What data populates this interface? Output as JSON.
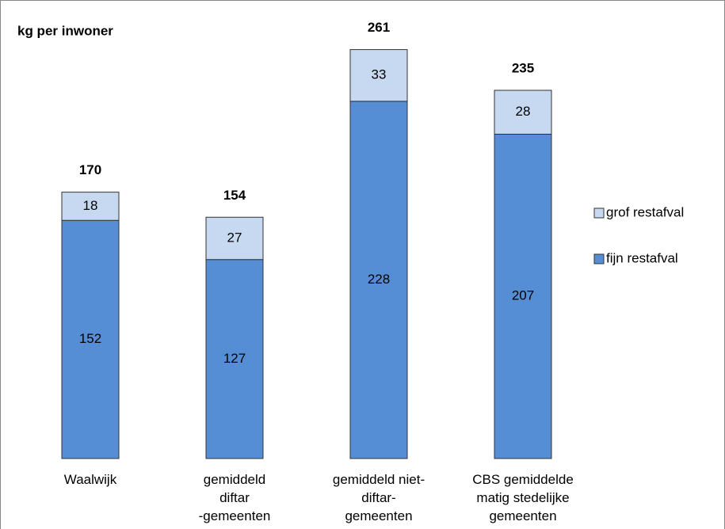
{
  "chart_data": {
    "type": "stacked_bar",
    "title": "kg per inwoner",
    "categories": [
      "Waalwijk",
      "gemiddeld\ndiftar\n-gemeenten",
      "gemiddeld niet-\ndiftar-\ngemeenten",
      "CBS gemiddelde\nmatig stedelijke\ngemeenten"
    ],
    "series": [
      {
        "name": "fijn restafval",
        "color": "#558ed5",
        "values": [
          152,
          127,
          228,
          207
        ]
      },
      {
        "name": "grof restafval",
        "color": "#c6d9f1",
        "values": [
          18,
          27,
          33,
          28
        ]
      }
    ],
    "totals": [
      170,
      154,
      261,
      235
    ],
    "ylim": [
      0,
      280
    ],
    "legend": "right"
  }
}
